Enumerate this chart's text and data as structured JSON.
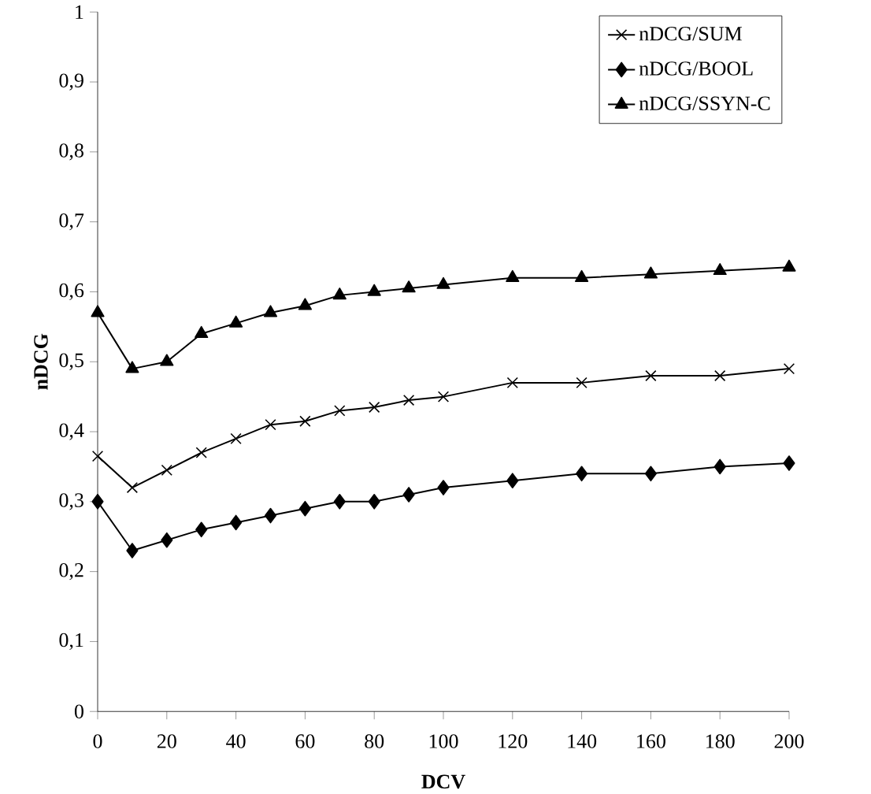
{
  "chart_data": {
    "type": "line",
    "xlabel": "DCV",
    "ylabel": "nDCG",
    "x": [
      0,
      10,
      20,
      30,
      40,
      50,
      60,
      70,
      80,
      90,
      100,
      120,
      140,
      160,
      180,
      200
    ],
    "series": [
      {
        "name": "nDCG/SUM",
        "color": "#000000",
        "marker": "cross",
        "values": [
          0.365,
          0.32,
          0.345,
          0.37,
          0.39,
          0.41,
          0.415,
          0.43,
          0.435,
          0.445,
          0.45,
          0.47,
          0.47,
          0.48,
          0.48,
          0.49
        ]
      },
      {
        "name": "nDCG/BOOL",
        "color": "#000000",
        "marker": "diamond",
        "values": [
          0.3,
          0.23,
          0.245,
          0.26,
          0.27,
          0.28,
          0.29,
          0.3,
          0.3,
          0.31,
          0.32,
          0.33,
          0.34,
          0.34,
          0.35,
          0.355
        ]
      },
      {
        "name": "nDCG/SSYN-C",
        "color": "#000000",
        "marker": "triangle",
        "values": [
          0.57,
          0.49,
          0.5,
          0.54,
          0.555,
          0.57,
          0.58,
          0.595,
          0.6,
          0.605,
          0.61,
          0.62,
          0.62,
          0.625,
          0.63,
          0.635
        ]
      }
    ],
    "xlim": [
      0,
      200
    ],
    "xticks": [
      0,
      20,
      40,
      60,
      80,
      100,
      120,
      140,
      160,
      180,
      200
    ],
    "ylim": [
      0,
      1
    ],
    "yticks": [
      0,
      {
        "value": 0.1,
        "label": "0,1"
      },
      {
        "value": 0.2,
        "label": "0,2"
      },
      {
        "value": 0.3,
        "label": "0,3"
      },
      {
        "value": 0.4,
        "label": "0,4"
      },
      {
        "value": 0.5,
        "label": "0,5"
      },
      {
        "value": 0.6,
        "label": "0,6"
      },
      {
        "value": 0.7,
        "label": "0,7"
      },
      {
        "value": 0.8,
        "label": "0,8"
      },
      {
        "value": 0.9,
        "label": "0,9"
      },
      1
    ],
    "grid": false,
    "legend": "top right",
    "line_style": "solid"
  }
}
